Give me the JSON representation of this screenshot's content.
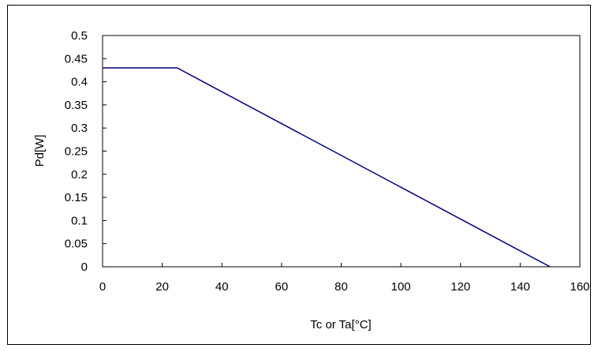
{
  "chart_data": {
    "type": "line",
    "title": "",
    "xlabel": "Tc or Ta[°C]",
    "ylabel": "Pd[W]",
    "xlim": [
      0,
      160
    ],
    "ylim": [
      0,
      0.5
    ],
    "x_ticks": [
      0,
      20,
      40,
      60,
      80,
      100,
      120,
      140,
      160
    ],
    "y_ticks": [
      0,
      0.05,
      0.1,
      0.15,
      0.2,
      0.25,
      0.3,
      0.35,
      0.4,
      0.45,
      0.5
    ],
    "x_tick_labels": [
      "0",
      "20",
      "40",
      "60",
      "80",
      "100",
      "120",
      "140",
      "160"
    ],
    "y_tick_labels": [
      "0",
      "0.05",
      "0.1",
      "0.15",
      "0.2",
      "0.25",
      "0.3",
      "0.35",
      "0.4",
      "0.45",
      "0.5"
    ],
    "grid": false,
    "legend": "none",
    "series": [
      {
        "color": "#000080",
        "points": [
          {
            "x": 0,
            "y": 0.43
          },
          {
            "x": 25,
            "y": 0.43
          },
          {
            "x": 150,
            "y": 0
          }
        ]
      }
    ]
  }
}
